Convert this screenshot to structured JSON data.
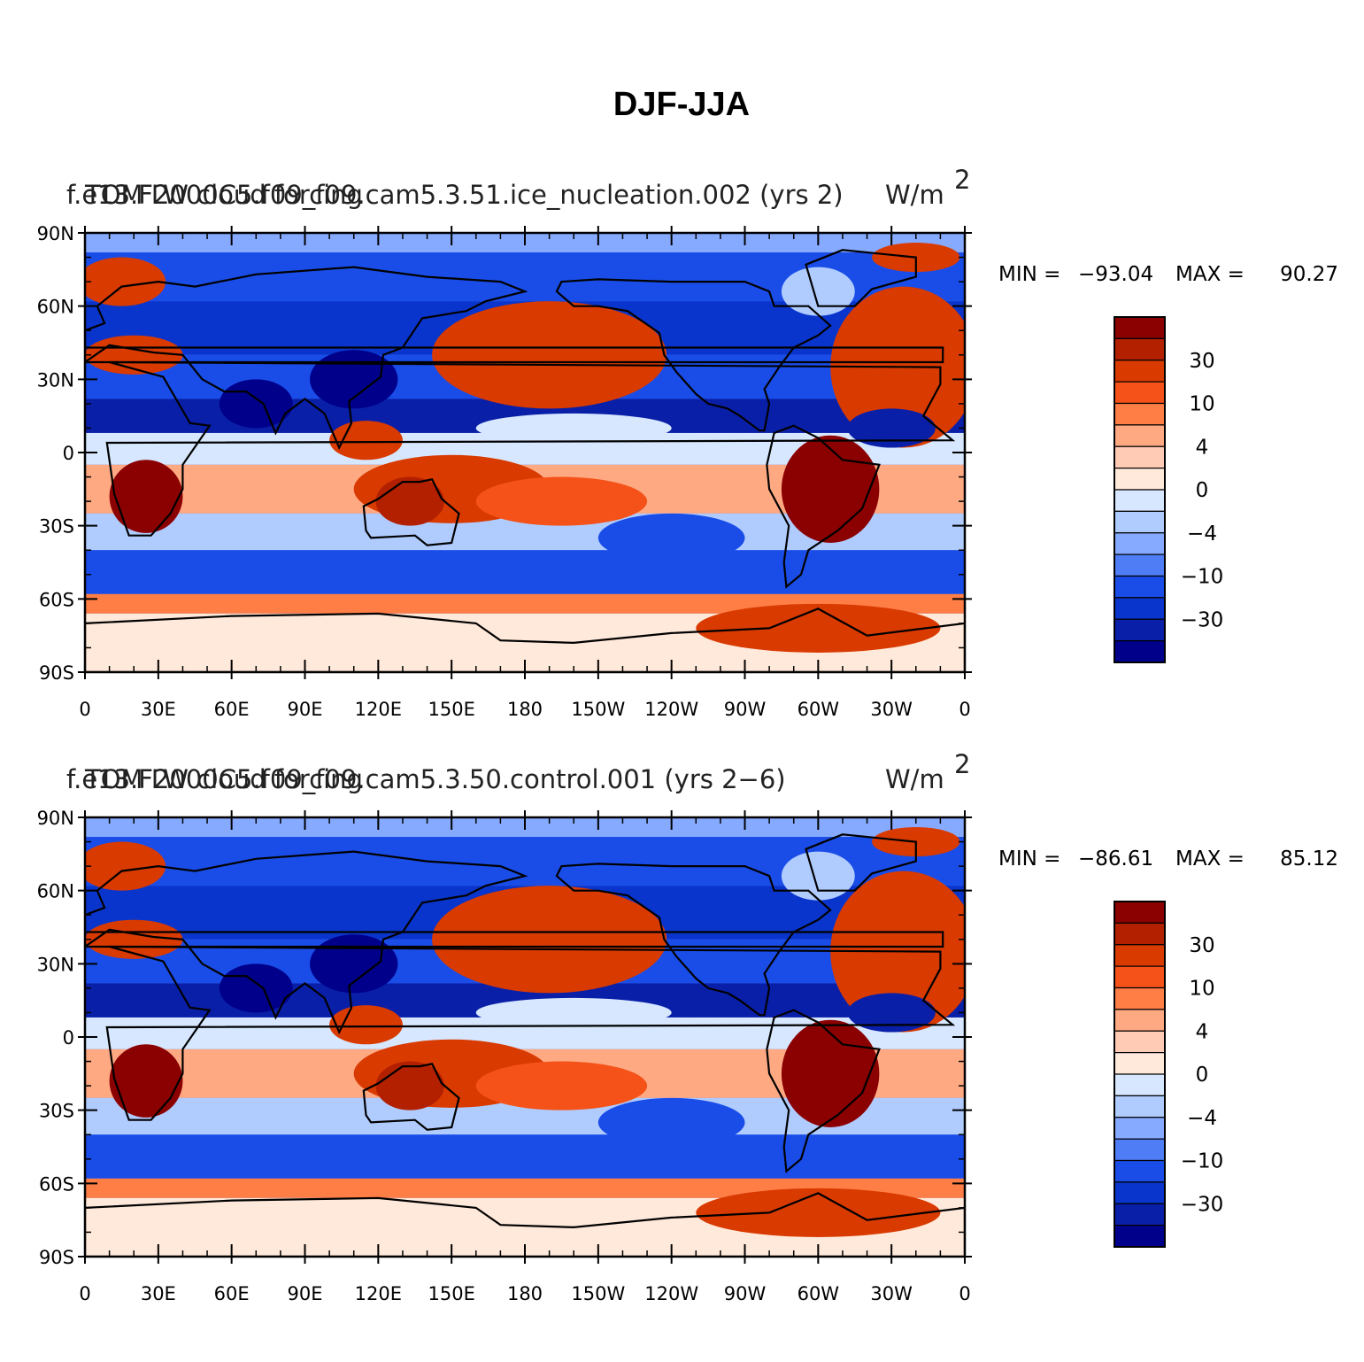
{
  "figure": {
    "title": "DJF-JJA",
    "lat_labels": [
      "90N",
      "60N",
      "30N",
      "0",
      "30S",
      "60S",
      "90S"
    ],
    "lon_labels": [
      "0",
      "30E",
      "60E",
      "90E",
      "120E",
      "150E",
      "180",
      "150W",
      "120W",
      "90W",
      "60W",
      "30W",
      "0"
    ],
    "colorbar_labels": [
      "30",
      "10",
      "4",
      "0",
      "−4",
      "−10",
      "−30"
    ],
    "colorbar_colors": [
      "#8b0000",
      "#b22000",
      "#d93a00",
      "#f45218",
      "#ff7e46",
      "#ffa983",
      "#ffcbb5",
      "#ffe9da",
      "#d6e7ff",
      "#b0ccff",
      "#86aaff",
      "#4f7df5",
      "#1a4de8",
      "#0a35cc",
      "#0a1fa8",
      "#00008b"
    ],
    "min_label": "MIN =",
    "max_label": "MAX =",
    "panels": [
      {
        "case_name": "f.e13.F2000C5.f09_f09.cam5.3.51.ice_nucleation.002",
        "years": "(yrs 2)",
        "variable": "TOM LW cloud forcing",
        "units": "W/m",
        "units_exp": "2",
        "min": "−93.04",
        "max": "90.27"
      },
      {
        "case_name": "f.e13.F2000C5.f09_f09.cam5.3.50.control.001",
        "years": "(yrs 2−6)",
        "variable": "TOM LW cloud forcing",
        "units": "W/m",
        "units_exp": "2",
        "min": "−86.61",
        "max": "85.12"
      }
    ]
  }
}
